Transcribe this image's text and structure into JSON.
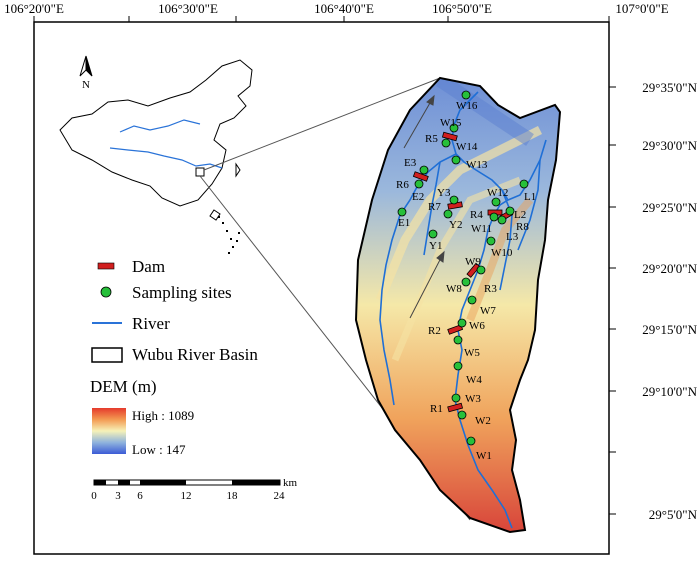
{
  "coordinates": {
    "longitude": [
      "106°20'0\"E",
      "106°30'0\"E",
      "106°40'0\"E",
      "106°50'0\"E",
      "107°0'0\"E"
    ],
    "latitude": [
      "29°35'0\"N",
      "29°30'0\"N",
      "29°25'0\"N",
      "29°20'0\"N",
      "29°15'0\"N",
      "29°10'0\"N",
      "29°5'0\"N"
    ]
  },
  "inset": {
    "north_label": "N"
  },
  "legend": {
    "items": [
      {
        "symbol": "dam",
        "label": "Dam",
        "color": "#d11f1f"
      },
      {
        "symbol": "site",
        "label": "Sampling sites",
        "color": "#27c03a"
      },
      {
        "symbol": "river",
        "label": "River",
        "color": "#2a73d8"
      },
      {
        "symbol": "basin",
        "label": "Wubu River Basin"
      }
    ],
    "dem": {
      "title": "DEM (m)",
      "high": "High : 1089",
      "low": "Low : 147",
      "high_color": "#e53a2c",
      "low_color": "#3b5bd6"
    }
  },
  "scale_bar": {
    "ticks": [
      "0",
      "3",
      "6",
      "12",
      "18",
      "24"
    ],
    "unit": "km"
  },
  "sites": [
    {
      "label": "W16"
    },
    {
      "label": "W15"
    },
    {
      "label": "W14"
    },
    {
      "label": "W13"
    },
    {
      "label": "E3"
    },
    {
      "label": "E2"
    },
    {
      "label": "E1"
    },
    {
      "label": "Y3"
    },
    {
      "label": "Y2"
    },
    {
      "label": "Y1"
    },
    {
      "label": "W12"
    },
    {
      "label": "L1"
    },
    {
      "label": "L2"
    },
    {
      "label": "L3"
    },
    {
      "label": "W11"
    },
    {
      "label": "W10"
    },
    {
      "label": "W9"
    },
    {
      "label": "W8"
    },
    {
      "label": "W7"
    },
    {
      "label": "W6"
    },
    {
      "label": "W5"
    },
    {
      "label": "W4"
    },
    {
      "label": "W3"
    },
    {
      "label": "W2"
    },
    {
      "label": "W1"
    }
  ],
  "dams": [
    {
      "label": "R5"
    },
    {
      "label": "R6"
    },
    {
      "label": "R7"
    },
    {
      "label": "R4"
    },
    {
      "label": "R8"
    },
    {
      "label": "R3"
    },
    {
      "label": "R2"
    },
    {
      "label": "R1"
    }
  ]
}
